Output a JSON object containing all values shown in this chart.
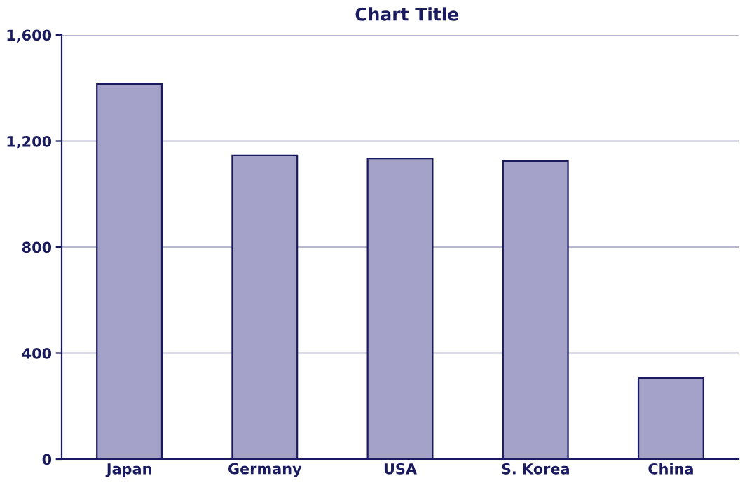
{
  "chart_data": {
    "type": "bar",
    "title": "Chart Title",
    "categories": [
      "Japan",
      "Germany",
      "USA",
      "S. Korea",
      "China"
    ],
    "values": [
      1415,
      1146,
      1135,
      1125,
      306
    ],
    "color": "#a4a2c8",
    "ylim": [
      0,
      1600
    ],
    "yticks": [
      {
        "value": 0,
        "label": "0"
      },
      {
        "value": 400,
        "label": "400"
      },
      {
        "value": 800,
        "label": "800"
      },
      {
        "value": 1200,
        "label": "1,200"
      },
      {
        "value": 1600,
        "label": "1,600"
      }
    ],
    "grid": "y"
  }
}
